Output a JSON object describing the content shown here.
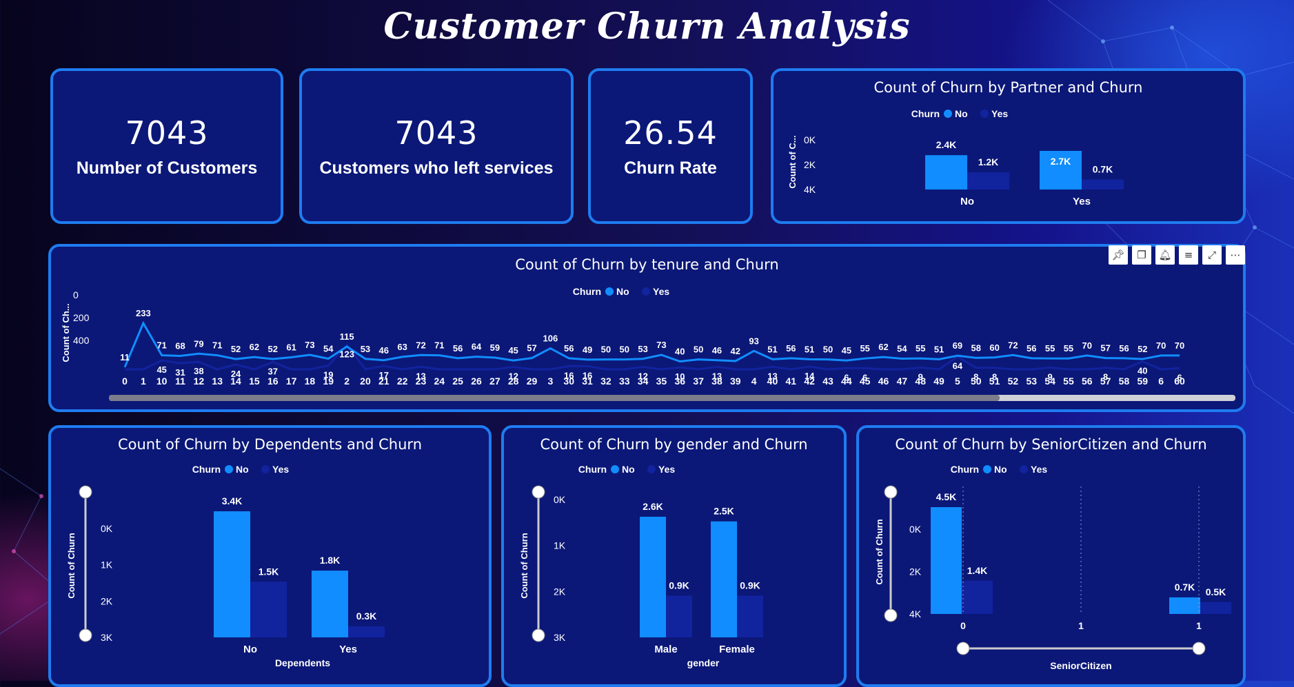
{
  "header": {
    "title": "Customer Churn Analysis"
  },
  "kpis": [
    {
      "value": "7043",
      "label": "Number of Customers"
    },
    {
      "value": "7043",
      "label": "Customers who left services"
    },
    {
      "value": "26.54",
      "label": "Churn Rate"
    }
  ],
  "toolbar": [
    "pin-icon",
    "copy-icon",
    "bell-icon",
    "filter-icon",
    "expand-icon",
    "more-icon"
  ],
  "colors": {
    "no": "#118dff",
    "yes": "#12239e",
    "card": "#0b1878",
    "border": "#1f7cf0"
  },
  "chart_data": [
    {
      "id": "partner",
      "type": "bar",
      "title": "Count of Churn by Partner and Churn",
      "legend_title": "Churn",
      "ylabel": "Count of C...",
      "xlabel": "",
      "yticks": [
        "4K",
        "2K",
        "0K"
      ],
      "ylim": [
        0,
        4000
      ],
      "categories": [
        "No",
        "Yes"
      ],
      "series": [
        {
          "name": "No",
          "values": [
            2400,
            2700
          ],
          "labels": [
            "2.4K",
            "2.7K"
          ]
        },
        {
          "name": "Yes",
          "values": [
            1200,
            700
          ],
          "labels": [
            "1.2K",
            "0.7K"
          ]
        }
      ]
    },
    {
      "id": "tenure",
      "type": "line",
      "title": "Count of Churn by tenure and Churn",
      "legend_title": "Churn",
      "ylabel": "Count of Ch...",
      "xlabel": "",
      "yticks": [
        "400",
        "200",
        "0"
      ],
      "ylim": [
        0,
        400
      ],
      "x": [
        "0",
        "1",
        "10",
        "11",
        "12",
        "13",
        "14",
        "15",
        "16",
        "17",
        "18",
        "19",
        "2",
        "20",
        "21",
        "22",
        "23",
        "24",
        "25",
        "26",
        "27",
        "28",
        "29",
        "3",
        "30",
        "31",
        "32",
        "33",
        "34",
        "35",
        "36",
        "37",
        "38",
        "39",
        "4",
        "40",
        "41",
        "42",
        "43",
        "44",
        "45",
        "46",
        "47",
        "48",
        "49",
        "5",
        "50",
        "51",
        "52",
        "53",
        "54",
        "55",
        "56",
        "57",
        "58",
        "59",
        "6",
        "60"
      ],
      "series": [
        {
          "name": "No",
          "values": [
            11,
            233,
            71,
            68,
            79,
            71,
            52,
            62,
            52,
            61,
            73,
            54,
            115,
            53,
            46,
            63,
            72,
            71,
            56,
            64,
            59,
            45,
            57,
            106,
            56,
            49,
            50,
            50,
            53,
            73,
            40,
            50,
            46,
            42,
            93,
            51,
            56,
            51,
            50,
            45,
            55,
            62,
            54,
            55,
            51,
            69,
            58,
            60,
            72,
            56,
            55,
            55,
            70,
            57,
            56,
            52,
            70,
            70
          ]
        },
        {
          "name": "Yes",
          "values": [
            null,
            null,
            45,
            31,
            38,
            null,
            24,
            null,
            37,
            null,
            null,
            19,
            123,
            null,
            17,
            null,
            13,
            null,
            null,
            null,
            null,
            12,
            null,
            null,
            16,
            16,
            null,
            null,
            12,
            null,
            10,
            null,
            13,
            null,
            null,
            13,
            null,
            14,
            null,
            6,
            6,
            null,
            null,
            9,
            null,
            64,
            8,
            8,
            null,
            null,
            9,
            null,
            null,
            8,
            null,
            40,
            null,
            6
          ]
        }
      ]
    },
    {
      "id": "dependents",
      "type": "bar",
      "title": "Count of Churn by Dependents and Churn",
      "legend_title": "Churn",
      "ylabel": "Count of Churn",
      "xlabel": "Dependents",
      "yticks": [
        "3K",
        "2K",
        "1K",
        "0K"
      ],
      "ylim": [
        0,
        3400
      ],
      "categories": [
        "No",
        "Yes"
      ],
      "series": [
        {
          "name": "No",
          "values": [
            3400,
            1800
          ],
          "labels": [
            "3.4K",
            "1.8K"
          ]
        },
        {
          "name": "Yes",
          "values": [
            1500,
            300
          ],
          "labels": [
            "1.5K",
            "0.3K"
          ]
        }
      ]
    },
    {
      "id": "gender",
      "type": "bar",
      "title": "Count of Churn by gender and Churn",
      "legend_title": "Churn",
      "ylabel": "Count of Churn",
      "xlabel": "gender",
      "yticks": [
        "3K",
        "2K",
        "1K",
        "0K"
      ],
      "ylim": [
        0,
        3000
      ],
      "categories": [
        "Male",
        "Female"
      ],
      "series": [
        {
          "name": "No",
          "values": [
            2600,
            2500
          ],
          "labels": [
            "2.6K",
            "2.5K"
          ]
        },
        {
          "name": "Yes",
          "values": [
            900,
            900
          ],
          "labels": [
            "0.9K",
            "0.9K"
          ]
        }
      ]
    },
    {
      "id": "senior",
      "type": "bar",
      "title": "Count of Churn by SeniorCitizen and Churn",
      "legend_title": "Churn",
      "ylabel": "Count of Churn",
      "xlabel": "SeniorCitizen",
      "yticks": [
        "4K",
        "2K",
        "0K"
      ],
      "ylim": [
        0,
        4500
      ],
      "xticks": [
        "0",
        "1",
        "1"
      ],
      "categories": [
        "0",
        "1"
      ],
      "series": [
        {
          "name": "No",
          "values": [
            4500,
            700
          ],
          "labels": [
            "4.5K",
            "0.7K"
          ]
        },
        {
          "name": "Yes",
          "values": [
            1400,
            500
          ],
          "labels": [
            "1.4K",
            "0.5K"
          ]
        }
      ]
    }
  ]
}
